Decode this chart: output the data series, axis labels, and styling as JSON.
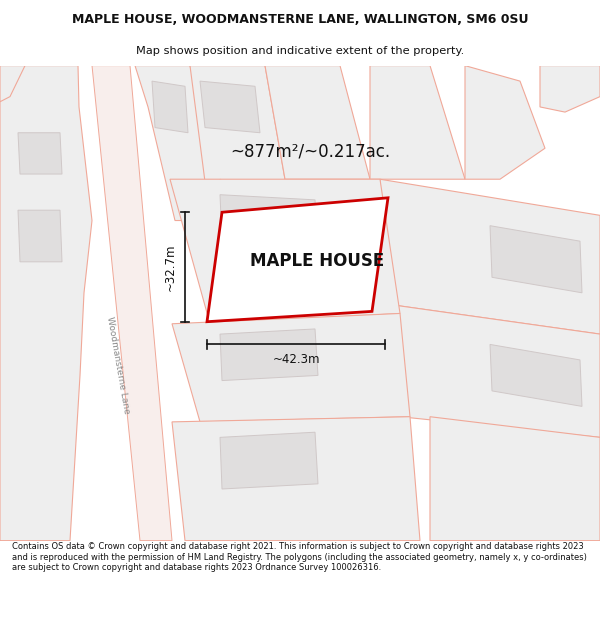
{
  "title_line1": "MAPLE HOUSE, WOODMANSTERNE LANE, WALLINGTON, SM6 0SU",
  "title_line2": "Map shows position and indicative extent of the property.",
  "area_text": "~877m²/~0.217ac.",
  "property_label": "MAPLE HOUSE",
  "dim_width": "~42.3m",
  "dim_height": "~32.7m",
  "street_label": "Woodmansterne Lane",
  "footer_text": "Contains OS data © Crown copyright and database right 2021. This information is subject to Crown copyright and database rights 2023 and is reproduced with the permission of HM Land Registry. The polygons (including the associated geometry, namely x, y co-ordinates) are subject to Crown copyright and database rights 2023 Ordnance Survey 100026316.",
  "map_bg": "#ffffff",
  "plot_fill": "#eeeeee",
  "plot_edge": "#f0a898",
  "building_fill": "#e0dede",
  "building_edge": "#d0c8c8",
  "road_fill": "#f8eeec",
  "road_edge": "#f0a898",
  "prop_fill": "#ffffff",
  "prop_edge": "#cc0000",
  "dim_color": "#111111",
  "title_color": "#111111",
  "footer_color": "#111111",
  "street_color": "#888888"
}
